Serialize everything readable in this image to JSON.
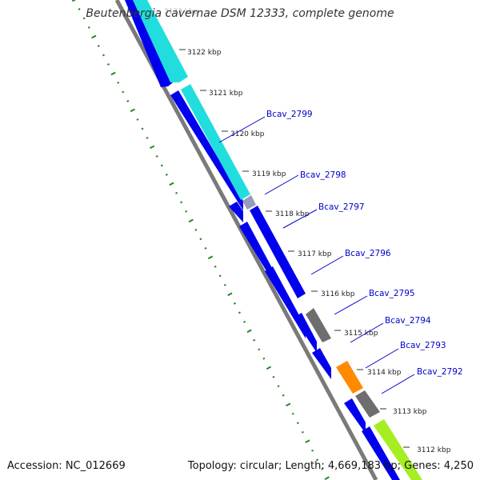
{
  "title": "Beutenbergia cavernae DSM 12333, complete genome",
  "accession": "Accession: NC_012669",
  "summary": "Topology: circular; Length: 4,669,183 bp; Genes: 4,250",
  "colors": {
    "cds_blue": "#0000ee",
    "rna_gray": "#6e6e6e",
    "orange": "#ff8a00",
    "cyan": "#22dddd",
    "lime": "#a6ee22",
    "dots_green": "#228822",
    "label_blue": "#0000cc"
  },
  "ticks": [
    "3122 kbp",
    "3121 kbp",
    "3120 kbp",
    "3119 kbp",
    "3118 kbp",
    "3117 kbp",
    "3116 kbp",
    "3115 kbp",
    "3114 kbp",
    "3113 kbp",
    "3112 kbp"
  ],
  "genes": [
    "Bcav_2799",
    "Bcav_2798",
    "Bcav_2797",
    "Bcav_2796",
    "Bcav_2795",
    "Bcav_2794",
    "Bcav_2793",
    "Bcav_2792"
  ]
}
